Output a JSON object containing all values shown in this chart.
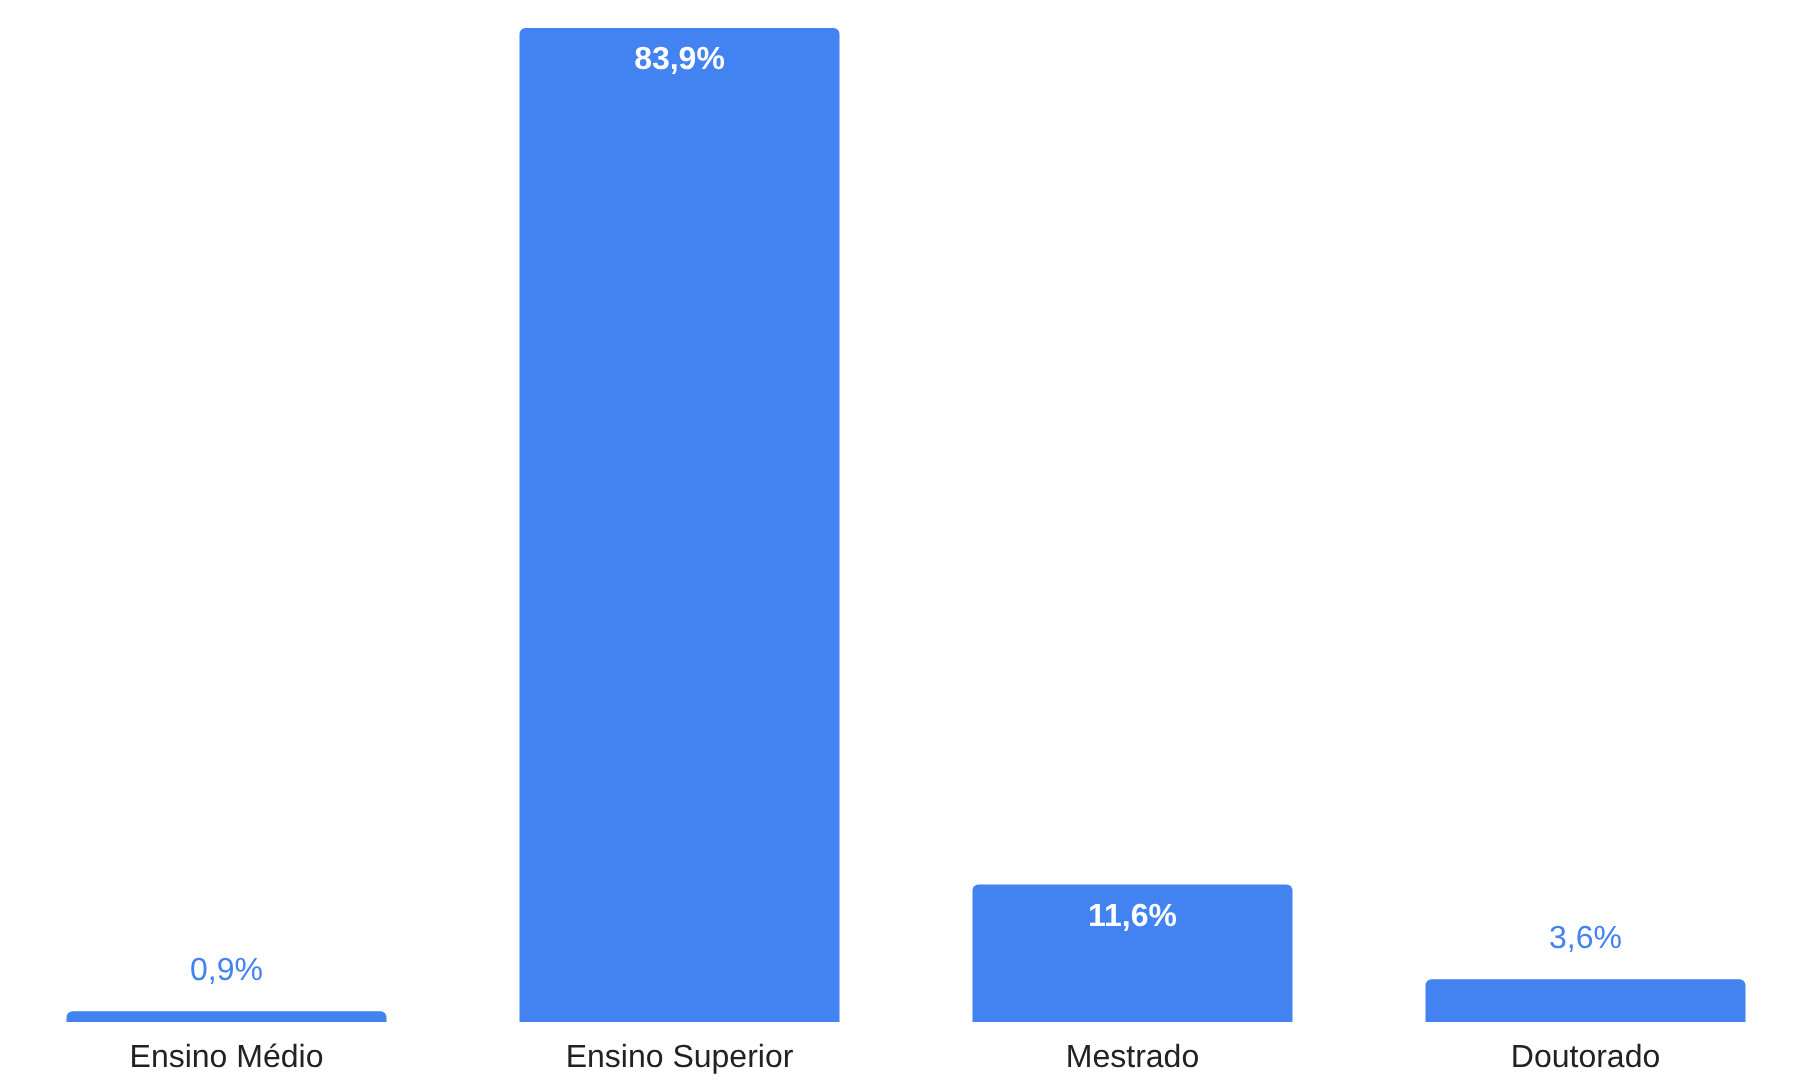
{
  "chart_data": {
    "type": "bar",
    "categories": [
      "Ensino Médio",
      "Ensino Superior",
      "Mestrado",
      "Doutorado"
    ],
    "values": [
      0.9,
      83.9,
      11.6,
      3.6
    ],
    "value_labels": [
      "0,9%",
      "83,9%",
      "11,6%",
      "3,6%"
    ],
    "color": "#4282f1"
  }
}
